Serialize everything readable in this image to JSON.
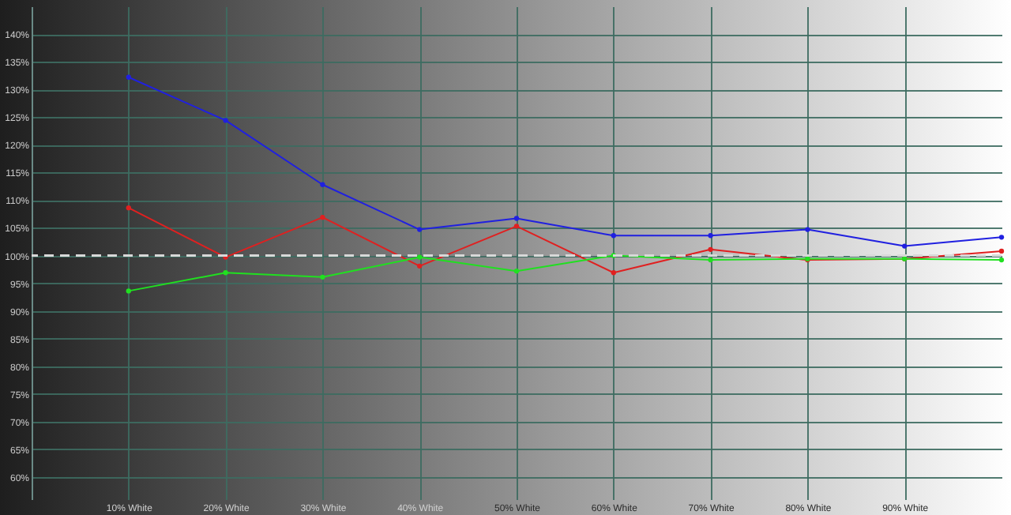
{
  "chart_data": {
    "type": "line",
    "x": [
      10,
      20,
      30,
      40,
      50,
      60,
      70,
      80,
      90,
      100
    ],
    "series": [
      {
        "color": "#2020e0",
        "values": [
          132.2,
          124.4,
          112.8,
          104.7,
          106.7,
          103.6,
          103.6,
          104.7,
          101.7,
          103.3
        ]
      },
      {
        "color": "#e02020",
        "values": [
          108.6,
          99.7,
          106.9,
          98.1,
          105.3,
          96.9,
          101.1,
          99.2,
          99.4,
          100.8
        ]
      },
      {
        "color": "#20e020",
        "values": [
          93.6,
          96.9,
          96.1,
          99.7,
          97.2,
          100,
          99.2,
          99.4,
          99.4,
          99.2
        ]
      }
    ],
    "xlim": [
      0,
      100
    ],
    "xticks": [
      {
        "value": 10,
        "label": "10% White"
      },
      {
        "value": 20,
        "label": "20% White"
      },
      {
        "value": 30,
        "label": "30% White"
      },
      {
        "value": 40,
        "label": "40% White"
      },
      {
        "value": 50,
        "label": "50% White"
      },
      {
        "value": 60,
        "label": "60% White"
      },
      {
        "value": 70,
        "label": "70% White"
      },
      {
        "value": 80,
        "label": "80% White"
      },
      {
        "value": 90,
        "label": "90% White"
      }
    ],
    "ylim": [
      56,
      145
    ],
    "yticks": [
      {
        "value": 60,
        "label": "60%"
      },
      {
        "value": 65,
        "label": "65%"
      },
      {
        "value": 70,
        "label": "70%"
      },
      {
        "value": 75,
        "label": "75%"
      },
      {
        "value": 80,
        "label": "80%"
      },
      {
        "value": 85,
        "label": "85%"
      },
      {
        "value": 90,
        "label": "90%"
      },
      {
        "value": 95,
        "label": "95%"
      },
      {
        "value": 100,
        "label": "100%"
      },
      {
        "value": 105,
        "label": "105%"
      },
      {
        "value": 110,
        "label": "110%"
      },
      {
        "value": 115,
        "label": "115%"
      },
      {
        "value": 120,
        "label": "120%"
      },
      {
        "value": 125,
        "label": "125%"
      },
      {
        "value": 130,
        "label": "130%"
      },
      {
        "value": 135,
        "label": "135%"
      },
      {
        "value": 140,
        "label": "140%"
      }
    ],
    "ref_lines": [
      {
        "axis": "y",
        "value": 100,
        "line_style": "dashed",
        "color": "#d8d8d8"
      }
    ],
    "grid": true,
    "marker": "circle",
    "line_style": "solid"
  }
}
